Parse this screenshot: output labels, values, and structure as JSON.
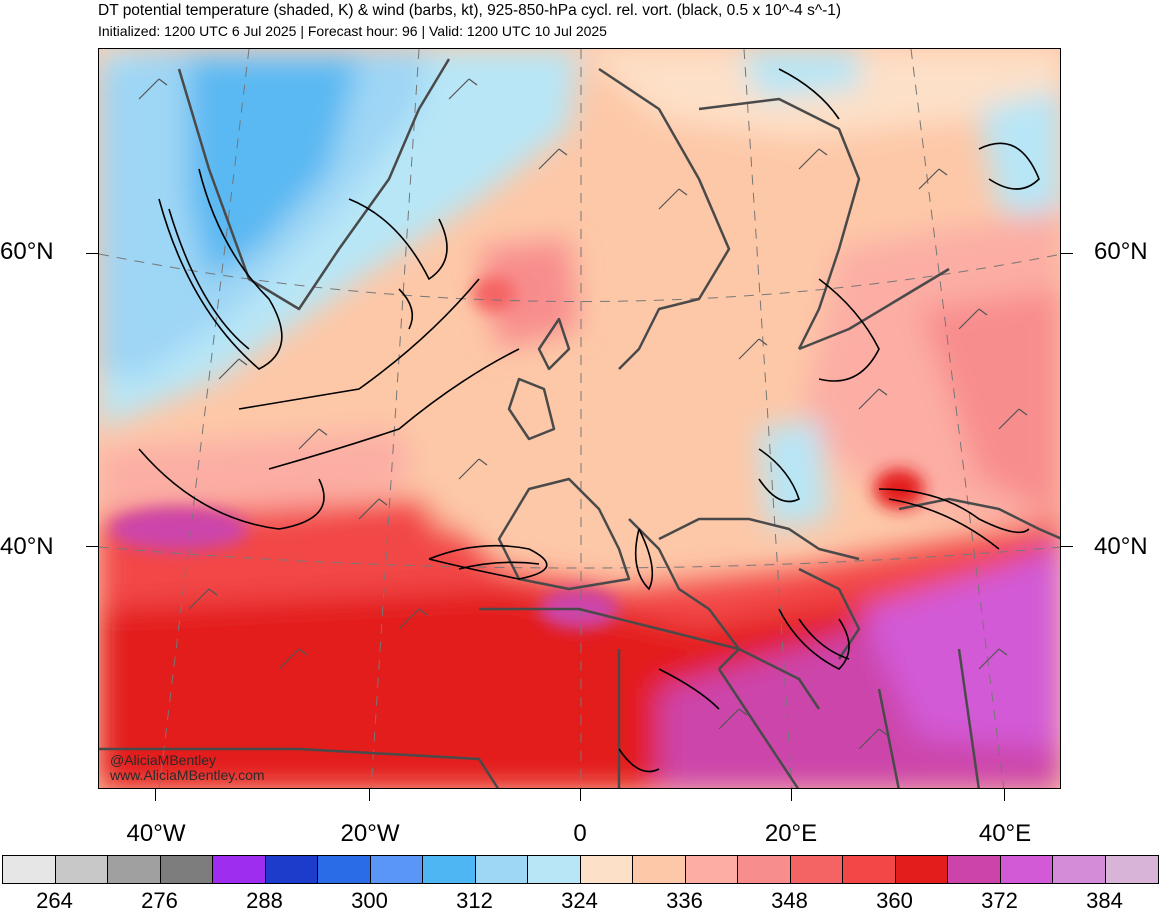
{
  "header": {
    "title": "DT potential temperature (shaded, K) & wind (barbs, kt), 925-850-hPa cycl. rel. vort. (black, 0.5 x 10^-4 s^-1)",
    "subtitle": "Initialized: 1200 UTC 6 Jul 2025 | Forecast hour: 96 | Valid: 1200 UTC 10 Jul 2025"
  },
  "map": {
    "lat_labels": [
      "60°N",
      "40°N"
    ],
    "lon_labels": [
      "40°W",
      "20°W",
      "0",
      "20°E",
      "40°E"
    ],
    "watermark_handle": "@AliciaMBentley",
    "watermark_url": "www.AliciaMBentley.com"
  },
  "colorbar": {
    "colors": [
      "#e6e6e6",
      "#c8c8c8",
      "#a0a0a0",
      "#7d7d7d",
      "#9e2df0",
      "#1e3ccb",
      "#2a6be8",
      "#5a96f6",
      "#4eb7f3",
      "#9ed6f5",
      "#b8e6f6",
      "#fde0c8",
      "#fdc8a8",
      "#fcaea4",
      "#f88d8d",
      "#f46464",
      "#f24747",
      "#e31c1c",
      "#cc44aa",
      "#d25ad6",
      "#d48cd9",
      "#d8b4d8"
    ],
    "labels": [
      "264",
      "276",
      "288",
      "300",
      "312",
      "324",
      "336",
      "348",
      "360",
      "372",
      "384"
    ]
  }
}
